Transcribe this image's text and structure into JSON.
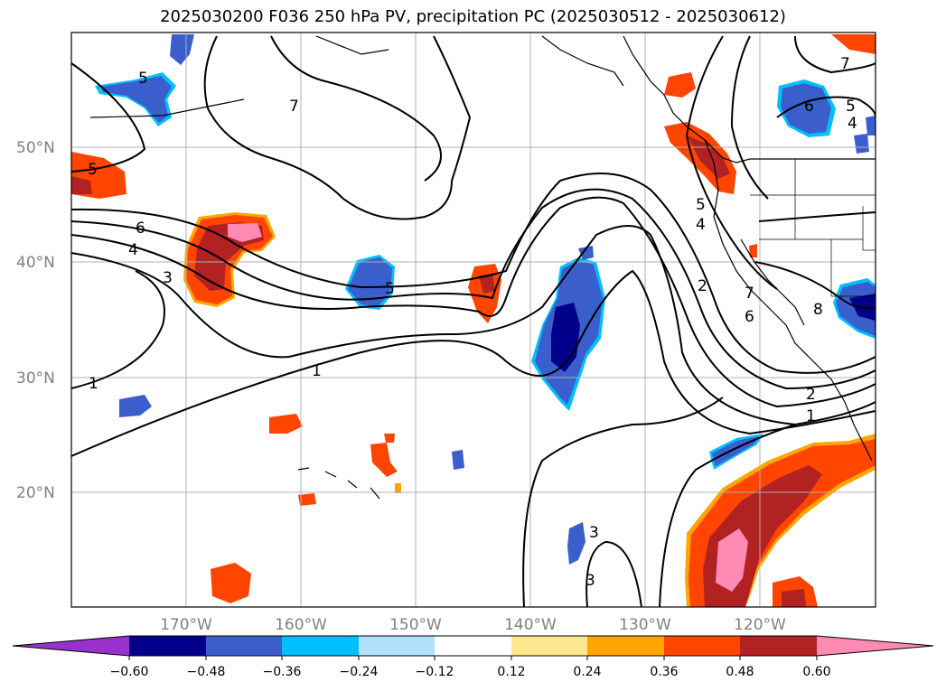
{
  "title": "2025030200 F036 250 hPa PV, precipitation PC (2025030512 - 2025030612)",
  "map": {
    "projection": "PlateCarree",
    "lon_range": [
      -180,
      -110
    ],
    "lat_range": [
      10,
      60
    ],
    "grid": true,
    "lat_ticks": [
      "50°N",
      "40°N",
      "30°N",
      "20°N"
    ],
    "lon_ticks": [
      "170°W",
      "160°W",
      "150°W",
      "140°W",
      "130°W",
      "120°W"
    ],
    "coastlines": true,
    "state_borders": true,
    "pv_contour_labels": [
      "7",
      "6",
      "5",
      "4",
      "3",
      "1",
      "1",
      "5",
      "5",
      "7",
      "6",
      "5",
      "4",
      "2",
      "2",
      "1",
      "3",
      "3",
      "4",
      "7",
      "6",
      "5",
      "8"
    ]
  },
  "colorbar": {
    "tick_labels": [
      "−0.60",
      "−0.48",
      "−0.36",
      "−0.24",
      "−0.12",
      "0.12",
      "0.24",
      "0.36",
      "0.48",
      "0.60"
    ],
    "colors": [
      "#9932cc",
      "#00008b",
      "#3a5fcd",
      "#00bfff",
      "#b0e2ff",
      "#ffffff",
      "#ffe78f",
      "#ffa500",
      "#ff4500",
      "#b22222",
      "#ff8ab4"
    ],
    "extend": "both"
  }
}
